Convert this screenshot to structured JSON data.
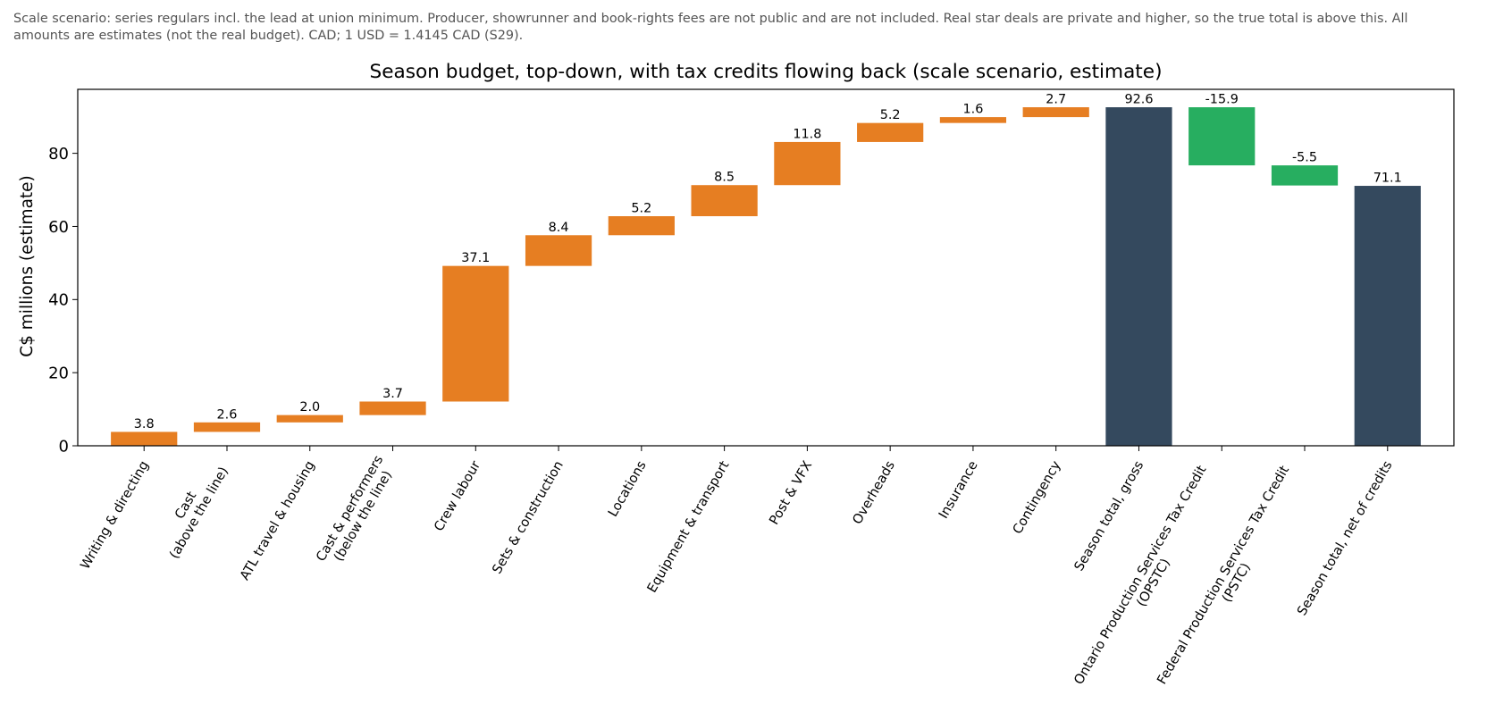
{
  "chart_data": {
    "type": "waterfall",
    "note": [
      "Scale scenario: series regulars incl. the lead at union minimum. Producer, showrunner and book-rights fees are not public and are not included. Real star deals are private and higher, so the true total is above this. All",
      "amounts are estimates (not the real budget). CAD; 1 USD = 1.4145 CAD (S29)."
    ],
    "title": "Season budget, top-down, with tax credits flowing back (scale scenario, estimate)",
    "ylabel": "C$ millions (estimate)",
    "ylim": [
      0,
      97.5
    ],
    "yticks": [
      0,
      20,
      40,
      60,
      80
    ],
    "colors": {
      "cost": "#e67e22",
      "total": "#34495e",
      "credit": "#27ae60"
    },
    "bars": [
      {
        "label": [
          "Writing & directing"
        ],
        "kind": "cost",
        "value": 3.8,
        "display": "3.8"
      },
      {
        "label": [
          "Cast",
          "(above the line)"
        ],
        "kind": "cost",
        "value": 2.6,
        "display": "2.6"
      },
      {
        "label": [
          "ATL travel & housing"
        ],
        "kind": "cost",
        "value": 2.0,
        "display": "2.0"
      },
      {
        "label": [
          "Cast & performers",
          "(below the line)"
        ],
        "kind": "cost",
        "value": 3.7,
        "display": "3.7"
      },
      {
        "label": [
          "Crew labour"
        ],
        "kind": "cost",
        "value": 37.1,
        "display": "37.1"
      },
      {
        "label": [
          "Sets & construction"
        ],
        "kind": "cost",
        "value": 8.4,
        "display": "8.4"
      },
      {
        "label": [
          "Locations"
        ],
        "kind": "cost",
        "value": 5.2,
        "display": "5.2"
      },
      {
        "label": [
          "Equipment & transport"
        ],
        "kind": "cost",
        "value": 8.5,
        "display": "8.5"
      },
      {
        "label": [
          "Post & VFX"
        ],
        "kind": "cost",
        "value": 11.8,
        "display": "11.8"
      },
      {
        "label": [
          "Overheads"
        ],
        "kind": "cost",
        "value": 5.2,
        "display": "5.2"
      },
      {
        "label": [
          "Insurance"
        ],
        "kind": "cost",
        "value": 1.6,
        "display": "1.6"
      },
      {
        "label": [
          "Contingency"
        ],
        "kind": "cost",
        "value": 2.7,
        "display": "2.7"
      },
      {
        "label": [
          "Season total, gross"
        ],
        "kind": "total",
        "value": 92.6,
        "display": "92.6"
      },
      {
        "label": [
          "Ontario Production Services Tax Credit",
          "(OPSTC)"
        ],
        "kind": "credit",
        "value": -15.9,
        "display": "-15.9"
      },
      {
        "label": [
          "Federal Production Services Tax Credit",
          "(PSTC)"
        ],
        "kind": "credit",
        "value": -5.5,
        "display": "-5.5"
      },
      {
        "label": [
          "Season total, net of credits"
        ],
        "kind": "total",
        "value": 71.1,
        "display": "71.1"
      }
    ]
  }
}
